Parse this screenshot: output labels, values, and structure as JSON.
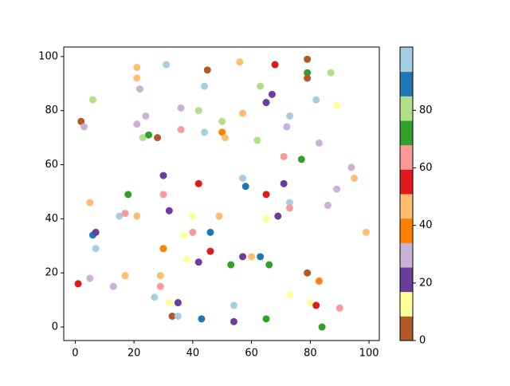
{
  "chart_data": {
    "type": "scatter",
    "x": [
      1,
      2,
      3,
      5,
      5,
      6,
      6,
      7,
      7,
      13,
      15,
      17,
      17,
      18,
      21,
      21,
      22,
      21,
      21,
      23,
      24,
      25,
      27,
      28,
      29,
      29,
      30,
      30,
      30,
      31,
      32,
      32,
      33,
      35,
      35,
      36,
      36,
      37,
      38,
      40,
      40,
      42,
      42,
      42,
      44,
      44,
      45,
      46,
      46,
      43,
      49,
      50,
      50,
      51,
      53,
      54,
      54,
      56,
      57,
      57,
      58,
      57,
      60,
      62,
      63,
      63,
      65,
      65,
      65,
      66,
      65,
      67,
      68,
      69,
      71,
      71,
      72,
      73,
      73,
      73,
      73,
      77,
      79,
      79,
      79,
      79,
      80,
      82,
      82,
      83,
      83,
      84,
      86,
      87,
      89,
      89,
      90,
      94,
      95,
      99
    ],
    "y": [
      16,
      76,
      74,
      46,
      18,
      84,
      34,
      35,
      29,
      15,
      41,
      42,
      19,
      49,
      96,
      92,
      88,
      75,
      41,
      70,
      78,
      71,
      11,
      70,
      19,
      15,
      56,
      49,
      29,
      97,
      43,
      9,
      4,
      4,
      9,
      81,
      73,
      34,
      25,
      41,
      35,
      80,
      53,
      24,
      89,
      72,
      95,
      35,
      28,
      3,
      41,
      76,
      72,
      70,
      23,
      8,
      2,
      98,
      79,
      55,
      52,
      26,
      26,
      69,
      89,
      26,
      83,
      49,
      40,
      23,
      3,
      86,
      97,
      41,
      63,
      53,
      74,
      78,
      46,
      44,
      12,
      62,
      94,
      92,
      99,
      20,
      9,
      84,
      8,
      68,
      17,
      0,
      45,
      94,
      82,
      51,
      7,
      59,
      55,
      35
    ],
    "c": [
      55,
      4,
      30,
      47,
      30,
      81,
      89,
      21,
      98,
      30,
      98,
      64,
      47,
      72,
      47,
      47,
      30,
      30,
      47,
      81,
      30,
      72,
      98,
      4,
      47,
      64,
      21,
      64,
      38,
      98,
      21,
      13,
      4,
      98,
      21,
      30,
      64,
      13,
      13,
      13,
      64,
      81,
      55,
      21,
      98,
      98,
      4,
      89,
      55,
      89,
      47,
      81,
      38,
      47,
      72,
      98,
      21,
      47,
      47,
      98,
      89,
      21,
      47,
      81,
      81,
      89,
      21,
      55,
      13,
      72,
      72,
      21,
      55,
      21,
      64,
      21,
      30,
      98,
      98,
      64,
      13,
      72,
      72,
      4,
      4,
      4,
      13,
      98,
      55,
      30,
      38,
      72,
      30,
      81,
      13,
      30,
      64,
      30,
      47,
      47
    ],
    "colormap": [
      "#b15928",
      "#ffff99",
      "#6a3d9a",
      "#cab2d6",
      "#ff7f00",
      "#fdbf6f",
      "#e31a1c",
      "#fb9a99",
      "#33a02c",
      "#b2df8a",
      "#1f78b4",
      "#a6cee3"
    ],
    "clim": [
      0,
      102
    ],
    "cticks": [
      0,
      20,
      40,
      60,
      80
    ],
    "xlim": [
      -3.9,
      103.5
    ],
    "xticks": [
      0,
      20,
      40,
      60,
      80,
      100
    ],
    "ylim": [
      -5,
      103.5
    ],
    "yticks": [
      0,
      20,
      40,
      60,
      80,
      100
    ]
  }
}
